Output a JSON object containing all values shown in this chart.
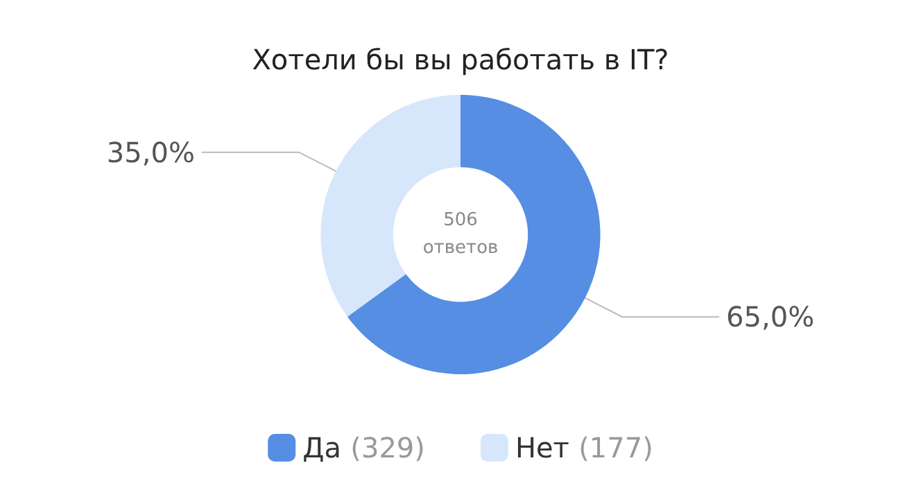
{
  "chart_data": {
    "type": "donut",
    "title": "Хотели бы вы работать в IT?",
    "categories": [
      "Да",
      "Нет"
    ],
    "values": [
      65,
      35
    ],
    "colors": [
      "#558ee3",
      "#d7e7fb"
    ],
    "value_labels": [
      "65,0%",
      "35,0%"
    ],
    "annotations": [
      "506 ответов",
      "(329)",
      "(177)"
    ],
    "legend": "bottom"
  }
}
